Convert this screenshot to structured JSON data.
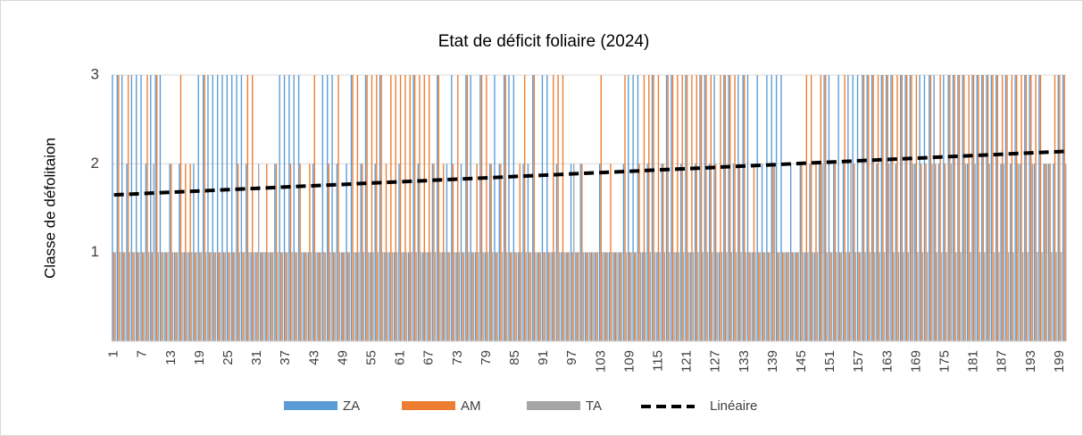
{
  "chart_data": {
    "type": "bar",
    "title": "Etat de déficit foliaire (2024)",
    "y_label": "Classe de défolitaion",
    "categories": [
      1,
      null,
      null,
      null,
      null,
      null,
      7,
      null,
      null,
      null,
      null,
      null,
      13,
      null,
      null,
      null,
      null,
      null,
      19,
      null,
      null,
      null,
      null,
      null,
      25,
      null,
      null,
      null,
      null,
      null,
      31,
      null,
      null,
      null,
      null,
      null,
      37,
      null,
      null,
      null,
      null,
      null,
      43,
      null,
      null,
      null,
      null,
      null,
      49,
      null,
      null,
      null,
      null,
      null,
      55,
      null,
      null,
      null,
      null,
      null,
      61,
      null,
      null,
      null,
      null,
      null,
      67,
      null,
      null,
      null,
      null,
      null,
      73,
      null,
      null,
      null,
      null,
      null,
      79,
      null,
      null,
      null,
      null,
      null,
      85,
      null,
      null,
      null,
      null,
      null,
      91,
      null,
      null,
      null,
      null,
      null,
      97,
      null,
      null,
      null,
      null,
      null,
      103,
      null,
      null,
      null,
      null,
      null,
      109,
      null,
      null,
      null,
      null,
      null,
      115,
      null,
      null,
      null,
      null,
      null,
      121,
      null,
      null,
      null,
      null,
      null,
      127,
      null,
      null,
      null,
      null,
      null,
      133,
      null,
      null,
      null,
      null,
      null,
      139,
      null,
      null,
      null,
      null,
      null,
      145,
      null,
      null,
      null,
      null,
      null,
      151,
      null,
      null,
      null,
      null,
      null,
      157,
      null,
      null,
      null,
      null,
      null,
      163,
      null,
      null,
      null,
      null,
      null,
      169,
      null,
      null,
      null,
      null,
      null,
      175,
      null,
      null,
      null,
      null,
      null,
      181,
      null,
      null,
      null,
      null,
      null,
      187,
      null,
      null,
      null,
      null,
      null,
      193,
      null,
      null,
      null,
      null,
      null,
      199,
      null
    ],
    "series": [
      {
        "name": "ZA",
        "color": "#5b9bd5",
        "values": [
          3,
          3,
          3,
          2,
          3,
          3,
          3,
          2,
          3,
          3,
          3,
          1,
          2,
          1,
          2,
          1,
          1,
          2,
          3,
          3,
          3,
          3,
          3,
          3,
          3,
          3,
          3,
          3,
          2,
          1,
          1,
          1,
          1,
          1,
          2,
          3,
          3,
          3,
          3,
          3,
          1,
          1,
          2,
          1,
          3,
          3,
          3,
          2,
          1,
          2,
          3,
          1,
          2,
          3,
          1,
          2,
          3,
          1,
          1,
          1,
          2,
          1,
          1,
          3,
          2,
          1,
          1,
          2,
          3,
          1,
          2,
          3,
          1,
          2,
          3,
          3,
          1,
          3,
          1,
          2,
          3,
          2,
          3,
          3,
          3,
          1,
          2,
          2,
          3,
          1,
          3,
          3,
          1,
          2,
          1,
          1,
          2,
          1,
          2,
          1,
          1,
          1,
          2,
          1,
          1,
          1,
          1,
          2,
          3,
          3,
          3,
          1,
          2,
          3,
          1,
          2,
          3,
          3,
          1,
          2,
          3,
          1,
          2,
          3,
          3,
          2,
          3,
          1,
          3,
          3,
          2,
          3,
          3,
          3,
          1,
          3,
          2,
          3,
          3,
          3,
          3,
          1,
          2,
          1,
          2,
          1,
          2,
          1,
          2,
          3,
          3,
          2,
          3,
          2,
          3,
          3,
          3,
          3,
          3,
          3,
          2,
          3,
          3,
          3,
          2,
          3,
          3,
          3,
          2,
          3,
          3,
          3,
          3,
          2,
          3,
          3,
          3,
          3,
          3,
          2,
          3,
          3,
          3,
          3,
          3,
          3,
          2,
          3,
          2,
          3,
          2,
          3,
          3,
          2,
          3,
          2,
          2,
          2,
          3,
          3
        ]
      },
      {
        "name": "AM",
        "color": "#ed7d31",
        "values": [
          1,
          3,
          1,
          3,
          1,
          1,
          1,
          3,
          1,
          3,
          1,
          1,
          2,
          1,
          3,
          2,
          2,
          1,
          1,
          3,
          1,
          1,
          1,
          1,
          1,
          1,
          2,
          1,
          3,
          3,
          1,
          1,
          2,
          1,
          2,
          1,
          1,
          2,
          1,
          2,
          1,
          2,
          3,
          1,
          1,
          2,
          1,
          3,
          1,
          1,
          3,
          3,
          2,
          3,
          3,
          3,
          3,
          2,
          3,
          3,
          3,
          3,
          3,
          3,
          3,
          3,
          3,
          2,
          3,
          2,
          1,
          2,
          3,
          1,
          3,
          1,
          2,
          3,
          3,
          2,
          1,
          2,
          3,
          1,
          1,
          2,
          3,
          1,
          3,
          1,
          1,
          1,
          3,
          3,
          3,
          1,
          1,
          1,
          2,
          1,
          1,
          1,
          3,
          1,
          2,
          1,
          1,
          3,
          1,
          1,
          2,
          3,
          3,
          3,
          3,
          2,
          3,
          3,
          3,
          3,
          3,
          3,
          3,
          3,
          3,
          3,
          2,
          3,
          3,
          3,
          3,
          2,
          3,
          1,
          2,
          1,
          1,
          1,
          2,
          1,
          1,
          1,
          1,
          1,
          2,
          3,
          3,
          2,
          3,
          3,
          1,
          2,
          1,
          3,
          1,
          2,
          1,
          3,
          3,
          3,
          3,
          3,
          3,
          3,
          3,
          3,
          3,
          3,
          3,
          2,
          2,
          3,
          2,
          3,
          2,
          3,
          3,
          3,
          3,
          3,
          3,
          3,
          3,
          3,
          3,
          3,
          3,
          3,
          3,
          3,
          3,
          3,
          3,
          3,
          3,
          2,
          2,
          3,
          3,
          3
        ]
      },
      {
        "name": "TA",
        "color": "#a5a5a5",
        "values": [
          1,
          1,
          1,
          1,
          1,
          1,
          1,
          1,
          2,
          1,
          1,
          1,
          1,
          1,
          1,
          1,
          1,
          1,
          1,
          1,
          1,
          1,
          1,
          1,
          1,
          1,
          1,
          1,
          1,
          1,
          2,
          1,
          1,
          1,
          1,
          1,
          1,
          1,
          1,
          1,
          1,
          1,
          1,
          1,
          1,
          1,
          1,
          1,
          1,
          1,
          1,
          1,
          1,
          1,
          1,
          1,
          1,
          1,
          1,
          1,
          1,
          1,
          1,
          1,
          1,
          1,
          1,
          1,
          1,
          1,
          1,
          1,
          1,
          1,
          1,
          1,
          1,
          1,
          1,
          1,
          1,
          1,
          1,
          1,
          1,
          1,
          1,
          1,
          1,
          1,
          1,
          1,
          1,
          1,
          1,
          1,
          2,
          1,
          1,
          1,
          1,
          1,
          1,
          1,
          1,
          1,
          1,
          1,
          1,
          1,
          1,
          1,
          1,
          1,
          1,
          1,
          1,
          1,
          1,
          1,
          1,
          1,
          1,
          1,
          1,
          1,
          1,
          1,
          1,
          1,
          1,
          1,
          1,
          1,
          1,
          1,
          1,
          1,
          2,
          1,
          1,
          1,
          1,
          1,
          1,
          1,
          1,
          1,
          2,
          1,
          1,
          1,
          1,
          1,
          2,
          1,
          1,
          1,
          1,
          1,
          1,
          1,
          2,
          1,
          1,
          1,
          1,
          2,
          1,
          1,
          1,
          2,
          1,
          1,
          1,
          2,
          1,
          1,
          2,
          1,
          2,
          1,
          1,
          2,
          1,
          1,
          2,
          1,
          1,
          2,
          1,
          1,
          2,
          1,
          1,
          2,
          1,
          1,
          1,
          2
        ]
      }
    ],
    "trend": {
      "name": "Linéaire",
      "color": "#000000",
      "values": [
        1.65,
        2.14
      ]
    },
    "ylim": [
      0,
      3
    ],
    "yticks": [
      1,
      2,
      3
    ],
    "grid": true,
    "legend": "bottom"
  }
}
